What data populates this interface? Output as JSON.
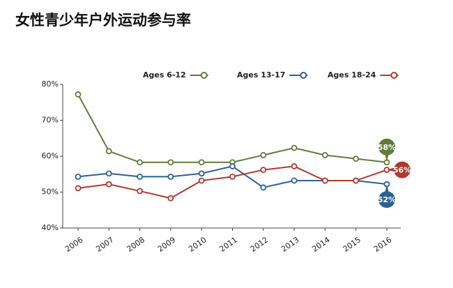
{
  "chart_data": {
    "type": "line",
    "title": "女性青少年户外运动参与率",
    "categories": [
      "2006",
      "2007",
      "2008",
      "2009",
      "2010",
      "2011",
      "2012",
      "2013",
      "2014",
      "2015",
      "2016"
    ],
    "series": [
      {
        "name": "Ages 6-12",
        "color": "#5e7d38",
        "values": [
          77.2,
          61.4,
          58.3,
          58.3,
          58.3,
          58.3,
          60.3,
          62.3,
          60.3,
          59.3,
          58.3
        ],
        "value_labels": [
          null,
          null,
          null,
          null,
          null,
          null,
          null,
          null,
          null,
          null,
          "58%"
        ]
      },
      {
        "name": "Ages 13-17",
        "color": "#2b6193",
        "values": [
          54.3,
          55.2,
          54.3,
          54.3,
          55.2,
          57.2,
          51.3,
          53.2,
          53.2,
          53.2,
          52.2
        ],
        "value_labels": [
          null,
          null,
          null,
          null,
          null,
          null,
          null,
          null,
          null,
          null,
          "52%"
        ]
      },
      {
        "name": "Ages 18-24",
        "color": "#b0392f",
        "values": [
          51.1,
          52.2,
          50.3,
          48.3,
          53.2,
          54.3,
          56.2,
          57.2,
          53.2,
          53.2,
          56.2
        ],
        "value_labels": [
          null,
          null,
          null,
          null,
          null,
          null,
          null,
          null,
          null,
          null,
          "56%"
        ]
      }
    ],
    "ylim": [
      40,
      80
    ],
    "yticks": [
      {
        "value": 40,
        "label": "40%"
      },
      {
        "value": 50,
        "label": "50%"
      },
      {
        "value": 60,
        "label": "60%"
      },
      {
        "value": 70,
        "label": "70%"
      },
      {
        "value": 80,
        "label": "80%"
      }
    ],
    "grid": false,
    "legend": "top"
  }
}
